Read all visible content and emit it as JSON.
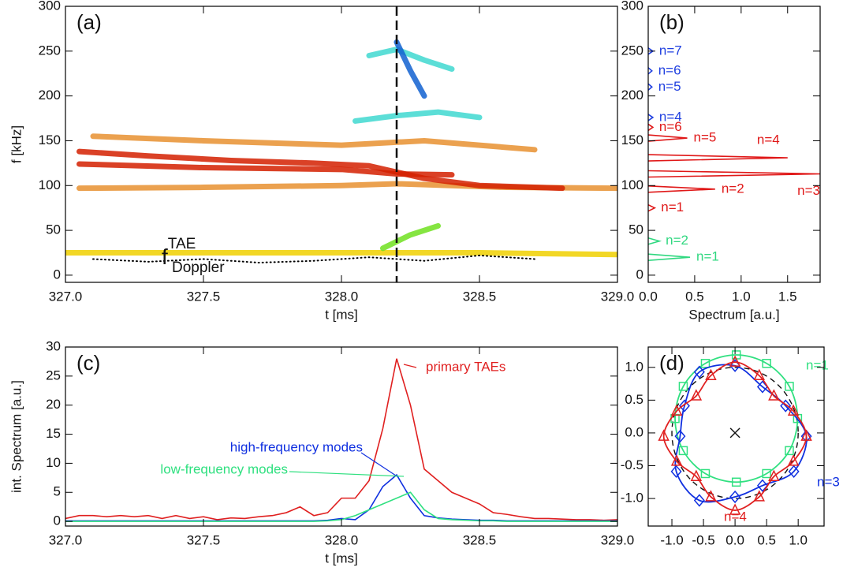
{
  "chart_data": [
    {
      "type": "contour",
      "panel_label": "(a)",
      "x_label": "t  [ms]",
      "y_label": "f  [kHz]",
      "xlim": [
        327,
        329
      ],
      "ylim": [
        -8,
        300
      ],
      "xticks": [
        {
          "value": 327,
          "label": "327.0"
        },
        327.5,
        {
          "value": 328,
          "label": "328.0"
        },
        328.5,
        {
          "value": 329,
          "label": "329.0"
        }
      ],
      "yticks": [
        0,
        50,
        100,
        150,
        200,
        250,
        300
      ],
      "marker_x": 328.2,
      "annotation": {
        "base": "f",
        "sup": "TAE",
        "sub": "Doppler"
      },
      "series": [
        {
          "color": "#f0d000",
          "x": [
            327.0,
            327.5,
            328.0,
            328.5,
            329.0
          ],
          "values": [
            25,
            25,
            25,
            25,
            23
          ]
        },
        {
          "color": "#e89030",
          "x": [
            327.1,
            327.5,
            328.0,
            328.3,
            328.7
          ],
          "values": [
            155,
            150,
            145,
            150,
            140
          ]
        },
        {
          "color": "#e89030",
          "x": [
            327.05,
            327.5,
            328.0,
            328.2,
            328.6,
            329.0
          ],
          "values": [
            97,
            98,
            100,
            102,
            98,
            97
          ]
        },
        {
          "color": "#d42000",
          "x": [
            327.05,
            327.3,
            327.6,
            327.9,
            328.1,
            328.2,
            328.3,
            328.5,
            328.8
          ],
          "values": [
            138,
            133,
            128,
            125,
            122,
            115,
            108,
            100,
            97
          ]
        },
        {
          "color": "#d42000",
          "x": [
            327.05,
            327.5,
            328.0,
            328.2,
            328.4
          ],
          "values": [
            124,
            120,
            118,
            113,
            112
          ]
        },
        {
          "color": "#40d8d0",
          "x": [
            328.05,
            328.2,
            328.35,
            328.5
          ],
          "values": [
            172,
            178,
            182,
            176
          ]
        },
        {
          "color": "#40d8d0",
          "x": [
            328.1,
            328.2,
            328.3,
            328.4
          ],
          "values": [
            245,
            252,
            240,
            230
          ]
        },
        {
          "color": "#1060d0",
          "x": [
            328.2,
            328.25,
            328.3
          ],
          "values": [
            260,
            228,
            200
          ]
        },
        {
          "color": "#70e020",
          "x": [
            328.15,
            328.25,
            328.35
          ],
          "values": [
            30,
            45,
            55
          ]
        },
        {
          "color": "#000000",
          "style": "dotted",
          "x": [
            327.1,
            327.3,
            327.5,
            327.7,
            327.9,
            328.1,
            328.3,
            328.5,
            328.7
          ],
          "values": [
            18,
            15,
            18,
            14,
            16,
            20,
            16,
            22,
            18
          ]
        }
      ]
    },
    {
      "type": "spectrum",
      "panel_label": "(b)",
      "x_label": "Spectrum [a.u.]",
      "xlim": [
        0,
        1.85
      ],
      "ylim": [
        -8,
        300
      ],
      "xticks": [
        {
          "value": 0,
          "label": "0.0"
        },
        0.5,
        {
          "value": 1,
          "label": "1.0"
        },
        1.5
      ],
      "yticks": [
        0,
        50,
        100,
        150,
        200,
        250,
        300
      ],
      "series": [
        {
          "color": "#2040e0",
          "frequencies": [
            250,
            228,
            210,
            176
          ],
          "values": [
            0.05,
            0.04,
            0.04,
            0.05
          ],
          "labels": [
            "n=7",
            "n=6",
            "n=5",
            "n=4"
          ]
        },
        {
          "color": "#e01818",
          "frequencies": [
            165,
            153,
            131,
            113,
            96,
            75
          ],
          "values": [
            0.05,
            0.42,
            1.5,
            1.85,
            0.72,
            0.07
          ],
          "labels": [
            "n=6",
            "n=5",
            "n=4",
            "n=3",
            "n=2",
            "n=1"
          ]
        },
        {
          "color": "#30d880",
          "frequencies": [
            38,
            20
          ],
          "values": [
            0.12,
            0.45
          ],
          "labels": [
            "n=2",
            "n=1"
          ]
        }
      ]
    },
    {
      "type": "line",
      "panel_label": "(c)",
      "x_label": "t  [ms]",
      "y_label": "int. Spectrum [a.u.]",
      "xlim": [
        327,
        329
      ],
      "ylim": [
        -0.8,
        30
      ],
      "xticks": [
        {
          "value": 327,
          "label": "327.0"
        },
        327.5,
        {
          "value": 328,
          "label": "328.0"
        },
        328.5,
        {
          "value": 329,
          "label": "329.0"
        }
      ],
      "yticks": [
        0,
        5,
        10,
        15,
        20,
        25,
        30
      ],
      "x": [
        327.0,
        327.05,
        327.1,
        327.15,
        327.2,
        327.25,
        327.3,
        327.35,
        327.4,
        327.45,
        327.5,
        327.55,
        327.6,
        327.65,
        327.7,
        327.75,
        327.8,
        327.85,
        327.9,
        327.95,
        328.0,
        328.05,
        328.1,
        328.15,
        328.2,
        328.25,
        328.3,
        328.35,
        328.4,
        328.45,
        328.5,
        328.55,
        328.6,
        328.65,
        328.7,
        328.75,
        328.8,
        328.85,
        328.9,
        328.95,
        329.0
      ],
      "series": [
        {
          "name": "primary TAEs",
          "color": "#e02020",
          "values": [
            0.5,
            1,
            1,
            0.8,
            1,
            0.8,
            1,
            0.5,
            1,
            0.5,
            0.8,
            0.3,
            0.6,
            0.5,
            0.8,
            1,
            1.5,
            2.5,
            1,
            1.5,
            4,
            4,
            7,
            16,
            28,
            20,
            9,
            7,
            5,
            4,
            3,
            1.5,
            1.2,
            0.8,
            0.5,
            0.5,
            0.4,
            0.3,
            0.3,
            0.2,
            0.3
          ]
        },
        {
          "name": "high-frequency modes",
          "color": "#1030e0",
          "values": [
            0.1,
            0.1,
            0.1,
            0.1,
            0.1,
            0.1,
            0.1,
            0.1,
            0.1,
            0.1,
            0.1,
            0.1,
            0.1,
            0.1,
            0.1,
            0.1,
            0.1,
            0.1,
            0.1,
            0.2,
            0.5,
            0.3,
            2,
            6,
            8,
            4,
            1,
            0.6,
            0.4,
            0.3,
            0.2,
            0.2,
            0.1,
            0.1,
            0.1,
            0.1,
            0.1,
            0.1,
            0.1,
            0.1,
            0.1
          ]
        },
        {
          "name": "low-frequency modes",
          "color": "#30e080",
          "values": [
            0,
            0,
            0,
            0,
            0,
            0,
            0,
            0,
            0,
            0,
            0,
            0,
            0,
            0,
            0,
            0,
            0,
            0,
            0,
            0.1,
            0.3,
            1,
            2,
            3,
            4,
            5,
            2,
            0.5,
            0.3,
            0.2,
            0.1,
            0.1,
            0,
            0,
            0,
            0,
            0,
            0,
            0,
            0,
            0
          ]
        }
      ]
    },
    {
      "type": "polar",
      "panel_label": "(d)",
      "xlim": [
        -1.375,
        1.41
      ],
      "ylim": [
        -1.42,
        1.31
      ],
      "xticks": [
        {
          "value": -1,
          "label": "-1.0"
        },
        -0.5,
        {
          "value": 0,
          "label": "0.0"
        },
        0.5,
        {
          "value": 1,
          "label": "1.0"
        }
      ],
      "yticks": [
        {
          "value": -1,
          "label": "-1.0"
        },
        -0.5,
        {
          "value": 0,
          "label": "0.0"
        },
        0.5,
        {
          "value": 1,
          "label": "1.0"
        }
      ],
      "reference_radius": 1,
      "series": [
        {
          "name": "n=1",
          "color": "#30e080",
          "marker": "square",
          "x": [
            0.99,
            0.86,
            0.5,
            0.02,
            -0.47,
            -0.82,
            -0.95,
            -0.82,
            -0.47,
            0.02,
            0.5,
            0.86
          ],
          "values": [
            0.22,
            0.71,
            1.06,
            1.19,
            1.06,
            0.71,
            0.22,
            -0.27,
            -0.62,
            -0.75,
            -0.62,
            -0.27
          ]
        },
        {
          "name": "n=3",
          "color": "#1030e0",
          "marker": "diamond",
          "x": [
            1.13,
            0.801,
            0.435,
            0,
            -0.565,
            -0.801,
            -0.87,
            -0.931,
            -0.565,
            0,
            0.435,
            0.931
          ],
          "values": [
            -0.05,
            0.413,
            0.703,
            1.025,
            0.929,
            0.413,
            -0.05,
            -0.588,
            -1.029,
            -0.975,
            -0.803,
            -0.588
          ]
        },
        {
          "name": "n=4",
          "color": "#e02020",
          "marker": "triangle",
          "x": [
            1.13,
            0.924,
            0.615,
            0.383,
            0,
            -0.383,
            -0.615,
            -0.924,
            -1.13,
            -0.924,
            -0.615,
            -0.383,
            0,
            0.383,
            0.615,
            0.924
          ],
          "values": [
            -0.05,
            0.333,
            0.565,
            0.874,
            1.08,
            0.874,
            0.565,
            0.333,
            -0.05,
            -0.433,
            -0.665,
            -0.974,
            -1.18,
            -0.974,
            -0.665,
            -0.433
          ]
        }
      ]
    }
  ]
}
